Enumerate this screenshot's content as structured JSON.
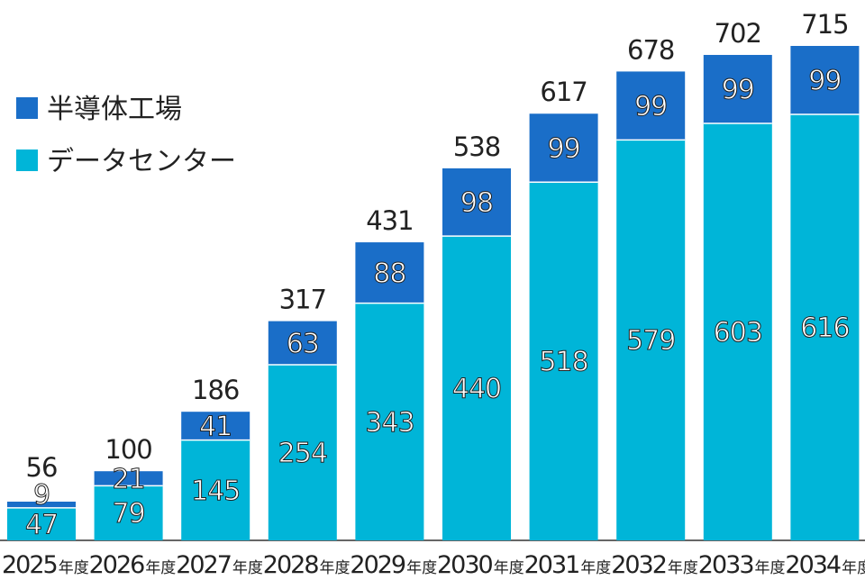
{
  "chart_data": {
    "type": "bar",
    "stacked": true,
    "categories": [
      "2025",
      "2026",
      "2027",
      "2028",
      "2029",
      "2030",
      "2031",
      "2032",
      "2033",
      "2034"
    ],
    "category_suffix": "年度",
    "series": [
      {
        "name": "データセンター",
        "color": "#00b5d8",
        "values": [
          47,
          79,
          145,
          254,
          343,
          440,
          518,
          579,
          603,
          616
        ]
      },
      {
        "name": "半導体工場",
        "color": "#1a6ec8",
        "values": [
          9,
          21,
          41,
          63,
          88,
          98,
          99,
          99,
          99,
          99
        ]
      }
    ],
    "totals": [
      56,
      100,
      186,
      317,
      431,
      538,
      617,
      678,
      702,
      715
    ],
    "legend_order": [
      "半導体工場",
      "データセンター"
    ],
    "legend_placement": "top-left",
    "ylim": [
      0,
      715
    ],
    "grid": false,
    "title": "",
    "xlabel": "",
    "ylabel": ""
  }
}
